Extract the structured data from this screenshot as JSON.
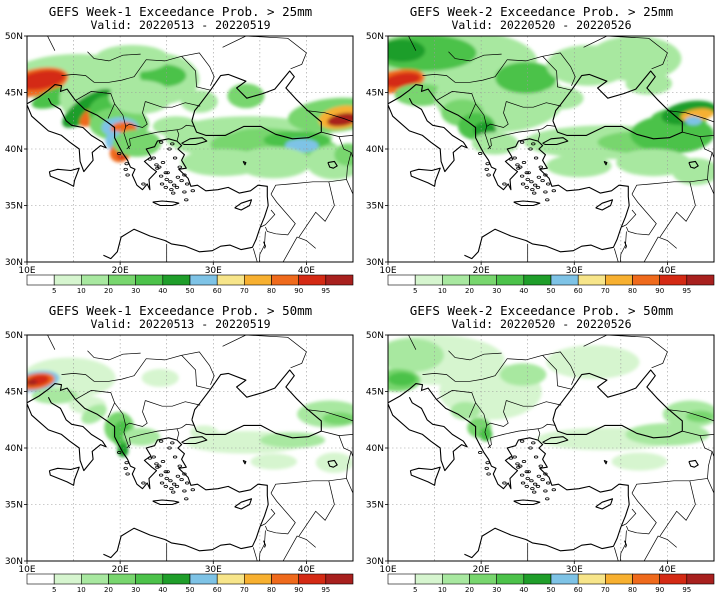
{
  "panels": [
    {
      "title": "GEFS Week-1 Exceedance Prob. > 25mm",
      "subtitle": "Valid: 20220513 - 20220519"
    },
    {
      "title": "GEFS Week-2 Exceedance Prob. > 25mm",
      "subtitle": "Valid: 20220520 - 20220526"
    },
    {
      "title": "GEFS Week-1 Exceedance Prob. > 50mm",
      "subtitle": "Valid: 20220513 - 20220519"
    },
    {
      "title": "GEFS Week-2 Exceedance Prob. > 50mm",
      "subtitle": "Valid: 20220520 - 20220526"
    }
  ],
  "map": {
    "lat_labels": [
      "50N",
      "45N",
      "40N",
      "35N",
      "30N"
    ],
    "lon_labels": [
      "10E",
      "20E",
      "30E",
      "40E"
    ]
  },
  "colorbar": {
    "levels": [
      "5",
      "10",
      "20",
      "30",
      "40",
      "50",
      "60",
      "70",
      "80",
      "90",
      "95"
    ],
    "colors": [
      "#ffffff",
      "#d6f5cf",
      "#a8e8a0",
      "#78d66e",
      "#4cc24a",
      "#1f9e2a",
      "#7ec3e6",
      "#f7e58a",
      "#f7b030",
      "#ef6a1c",
      "#d42a14",
      "#a8201e"
    ]
  }
}
